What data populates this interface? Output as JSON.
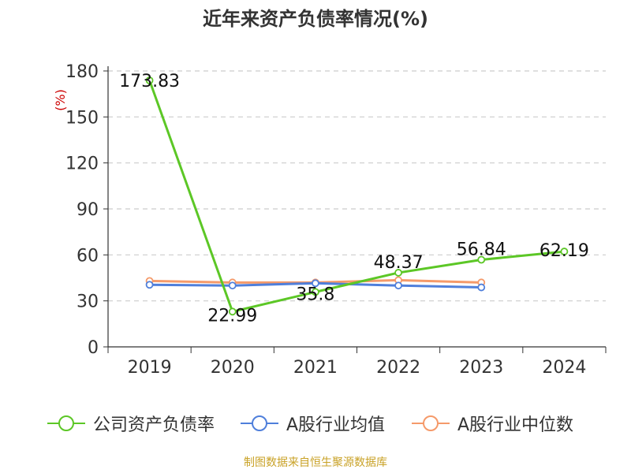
{
  "title": "近年来资产负债率情况(%)",
  "source": "制图数据来自恒生聚源数据库",
  "colors": {
    "company": "#5cc726",
    "industry_avg": "#4f7fdb",
    "industry_median": "#f59a6a",
    "grid": "#cccccc",
    "axis": "#333333",
    "unit": "#cc0000",
    "source": "#c9a227"
  },
  "chart_data": {
    "type": "line",
    "title": "近年来资产负债率情况(%)",
    "ylabel": "(%)",
    "xlabel": "",
    "categories": [
      "2019",
      "2020",
      "2021",
      "2022",
      "2023",
      "2024"
    ],
    "ylim": [
      0,
      180
    ],
    "yticks": [
      0,
      30,
      60,
      90,
      120,
      150,
      180
    ],
    "grid": true,
    "legend_position": "bottom",
    "series": [
      {
        "name": "公司资产负债率",
        "color": "#5cc726",
        "values": [
          173.83,
          22.99,
          35.8,
          48.37,
          56.84,
          62.19
        ],
        "data_labels": [
          "173.83",
          "22.99",
          "35.8",
          "48.37",
          "56.84",
          "62.19"
        ]
      },
      {
        "name": "A股行业均值",
        "color": "#4f7fdb",
        "values": [
          40.5,
          40.0,
          41.5,
          40.0,
          38.8,
          null
        ]
      },
      {
        "name": "A股行业中位数",
        "color": "#f59a6a",
        "values": [
          43.0,
          42.0,
          42.0,
          43.5,
          42.0,
          null
        ]
      }
    ]
  }
}
